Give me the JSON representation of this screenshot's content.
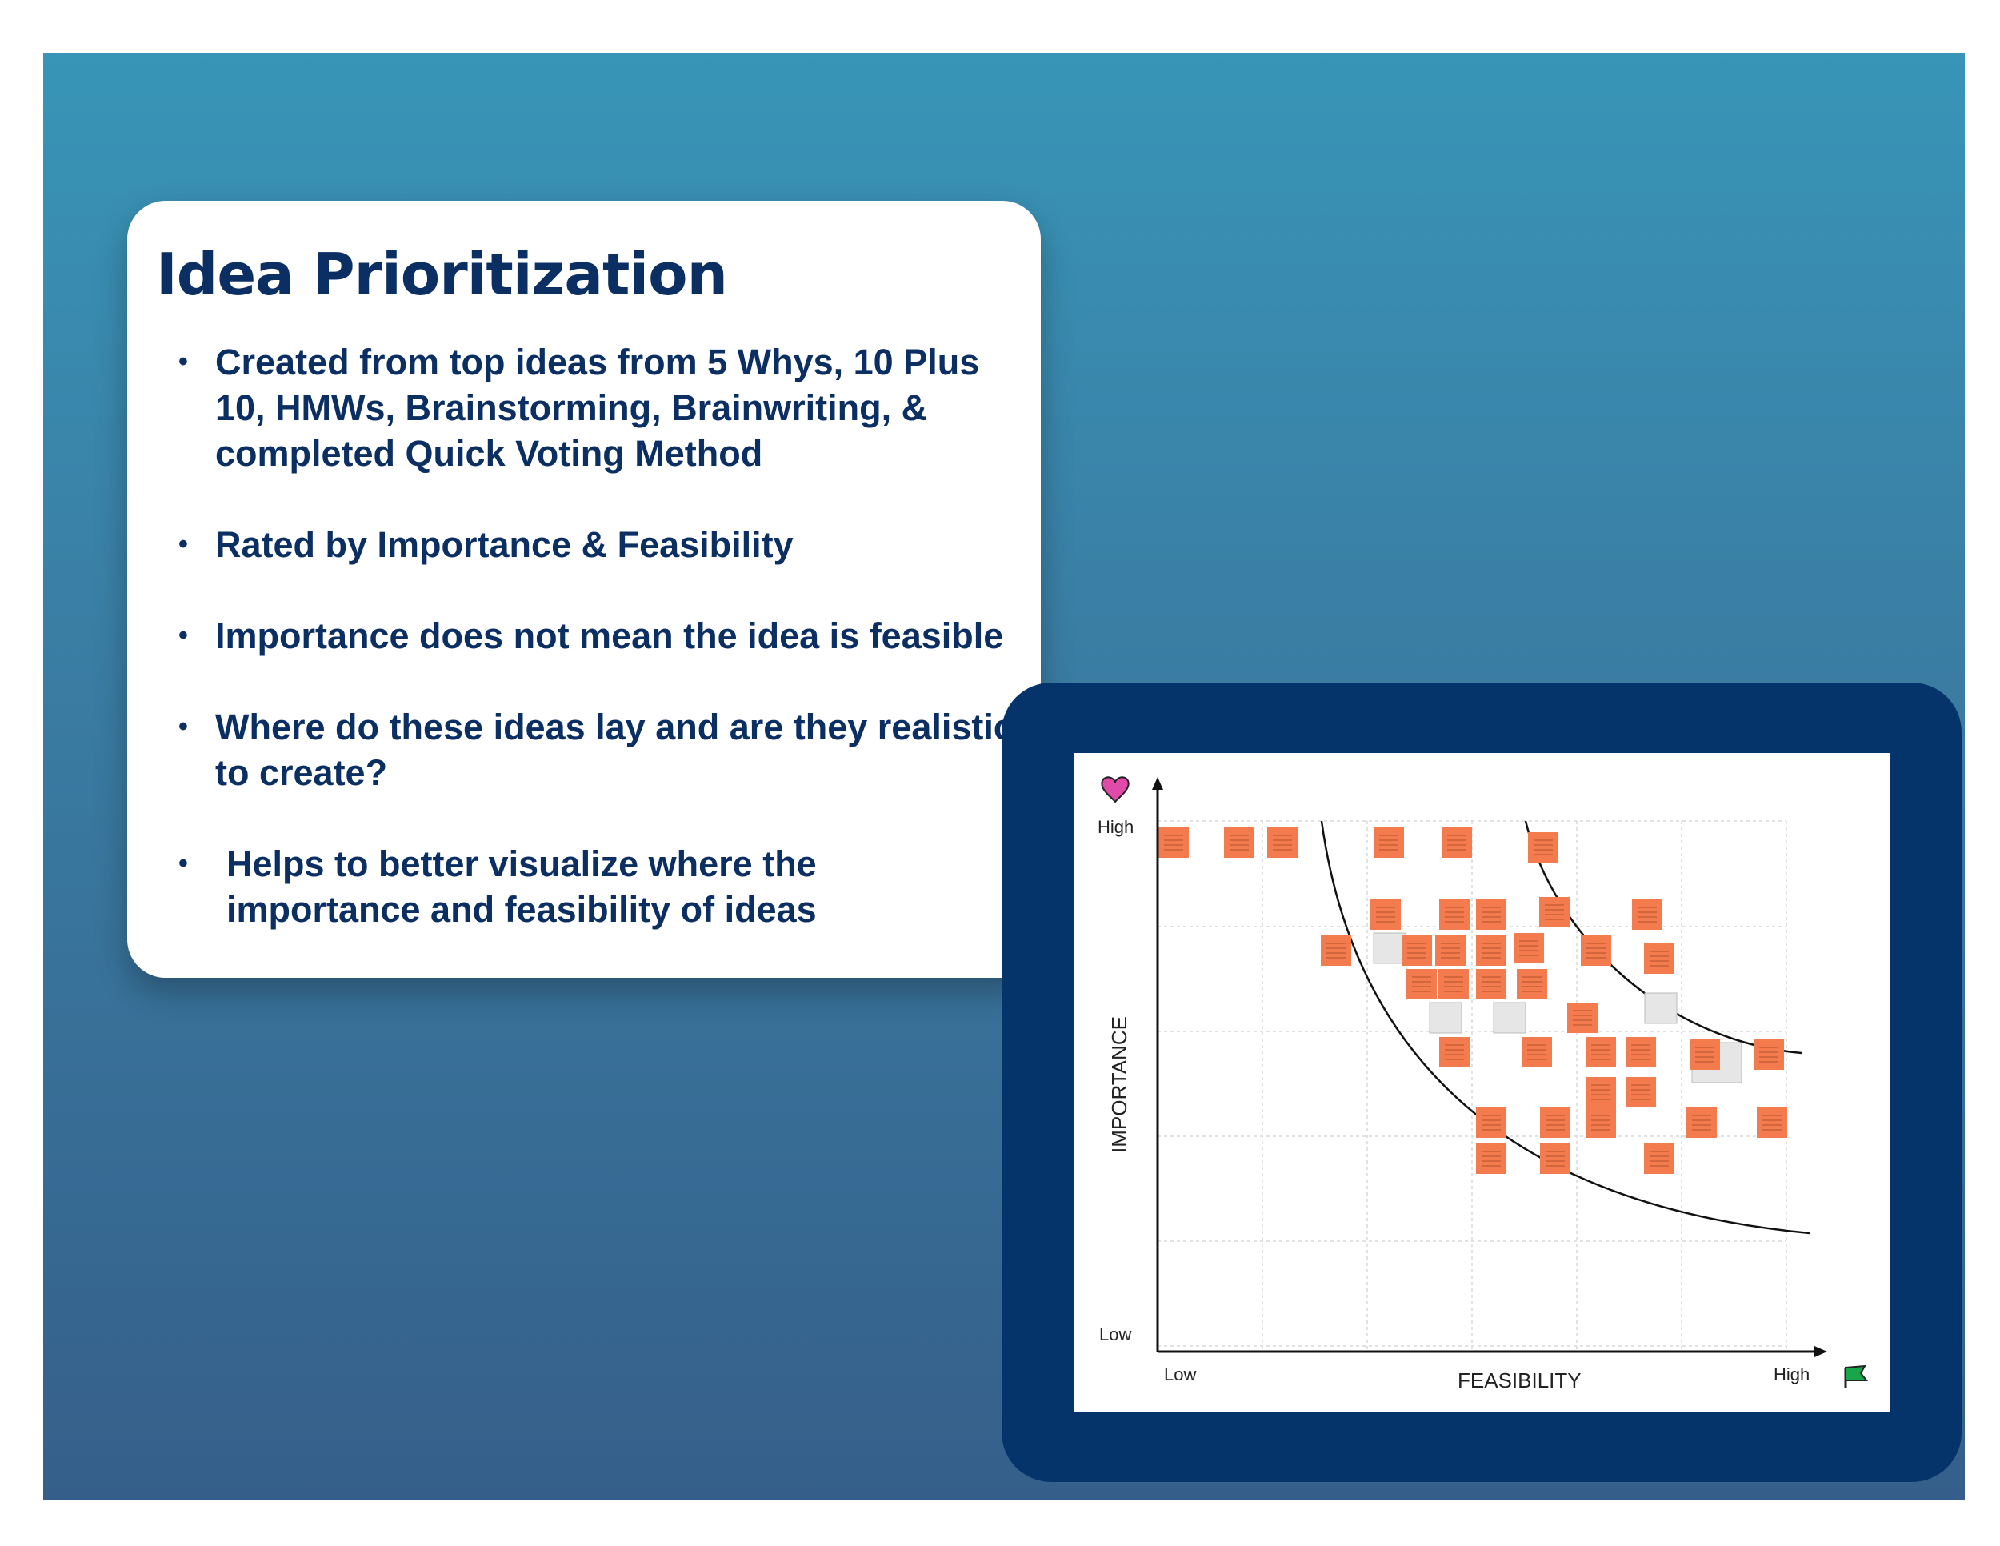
{
  "slide": {
    "title": "Idea Prioritization",
    "bullets": [
      "Created from top ideas from 5 Whys, 10 Plus 10, HMWs, Brainstorming, Brainwriting, & completed Quick Voting Method",
      "Rated by Importance & Feasibility",
      "Importance does not mean the idea is feasible",
      "Where do these ideas lay and are they realistic to create?",
      "Helps to better visualize where the importance and feasibility of ideas"
    ]
  },
  "matrix": {
    "y_axis_label": "IMPORTANCE",
    "x_axis_label": "FEASIBILITY",
    "y_high": "High",
    "y_low": "Low",
    "x_low": "Low",
    "x_high": "High",
    "y_icon": "heart-icon",
    "x_icon": "green-flag-icon",
    "sticky_color": "#f47b4d",
    "grid": true
  },
  "colors": {
    "title": "#0b2f63",
    "panel": "#05346a",
    "background_top": "#3895b7",
    "background_bottom": "#355f8a"
  }
}
